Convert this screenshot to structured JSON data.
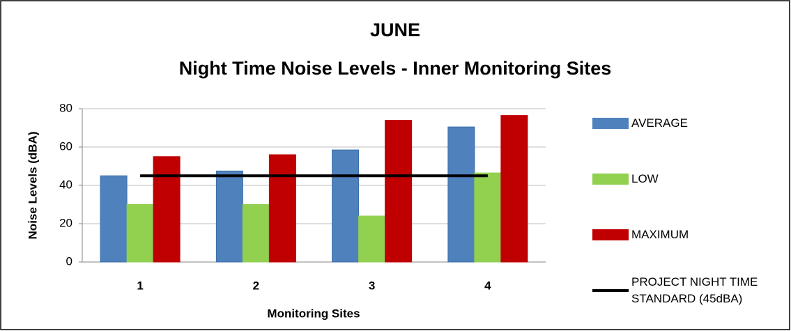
{
  "chart_data": {
    "type": "bar",
    "title": "JUNE",
    "subtitle": "Night Time Noise Levels - Inner Monitoring Sites",
    "x_label": "Monitoring Sites",
    "y_label": "Noise Levels (dBA)",
    "categories": [
      "1",
      "2",
      "3",
      "4"
    ],
    "series": [
      {
        "name": "AVERAGE",
        "color": "#4f81bd",
        "values": [
          45,
          47.5,
          58.5,
          70.5
        ]
      },
      {
        "name": "LOW",
        "color": "#92d050",
        "values": [
          30,
          30,
          24,
          46.5
        ]
      },
      {
        "name": "MAXIMUM",
        "color": "#c00000",
        "values": [
          55,
          56,
          74,
          76.5
        ]
      },
      {
        "name": "PROJECT NIGHT TIME STANDARD (45dBA)",
        "color": "#000000",
        "type": "line",
        "values": [
          45,
          45,
          45,
          45
        ]
      }
    ],
    "ylim": [
      0,
      80
    ],
    "yticks": [
      0,
      20,
      40,
      60,
      80
    ],
    "grid": true,
    "legend": "right"
  }
}
